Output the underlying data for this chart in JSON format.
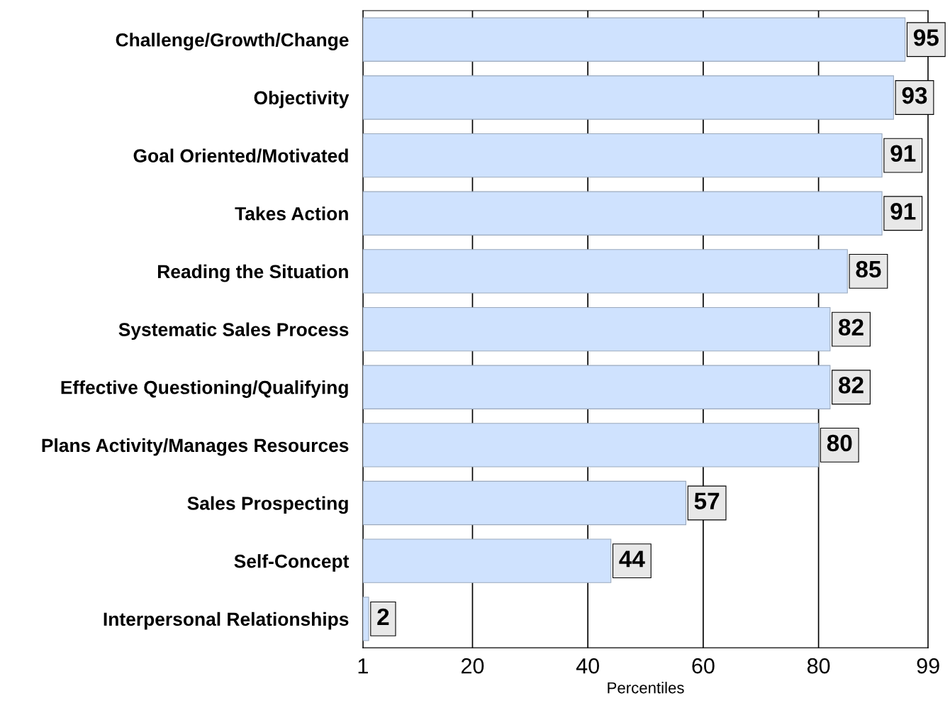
{
  "chart_data": {
    "type": "bar",
    "orientation": "horizontal",
    "xlabel": "Percentiles",
    "categories": [
      "Challenge/Growth/Change",
      "Objectivity",
      "Goal Oriented/Motivated",
      "Takes Action",
      "Reading the Situation",
      "Systematic Sales Process",
      "Effective Questioning/Qualifying",
      "Plans Activity/Manages Resources",
      "Sales Prospecting",
      "Self-Concept",
      "Interpersonal Relationships"
    ],
    "values": [
      95,
      93,
      91,
      91,
      85,
      82,
      82,
      80,
      57,
      44,
      2
    ],
    "color": "#cfe2fe",
    "data_labels": true,
    "xlim": [
      1,
      99
    ],
    "xticks": [
      1,
      20,
      40,
      60,
      80,
      99
    ],
    "grid": "x"
  }
}
